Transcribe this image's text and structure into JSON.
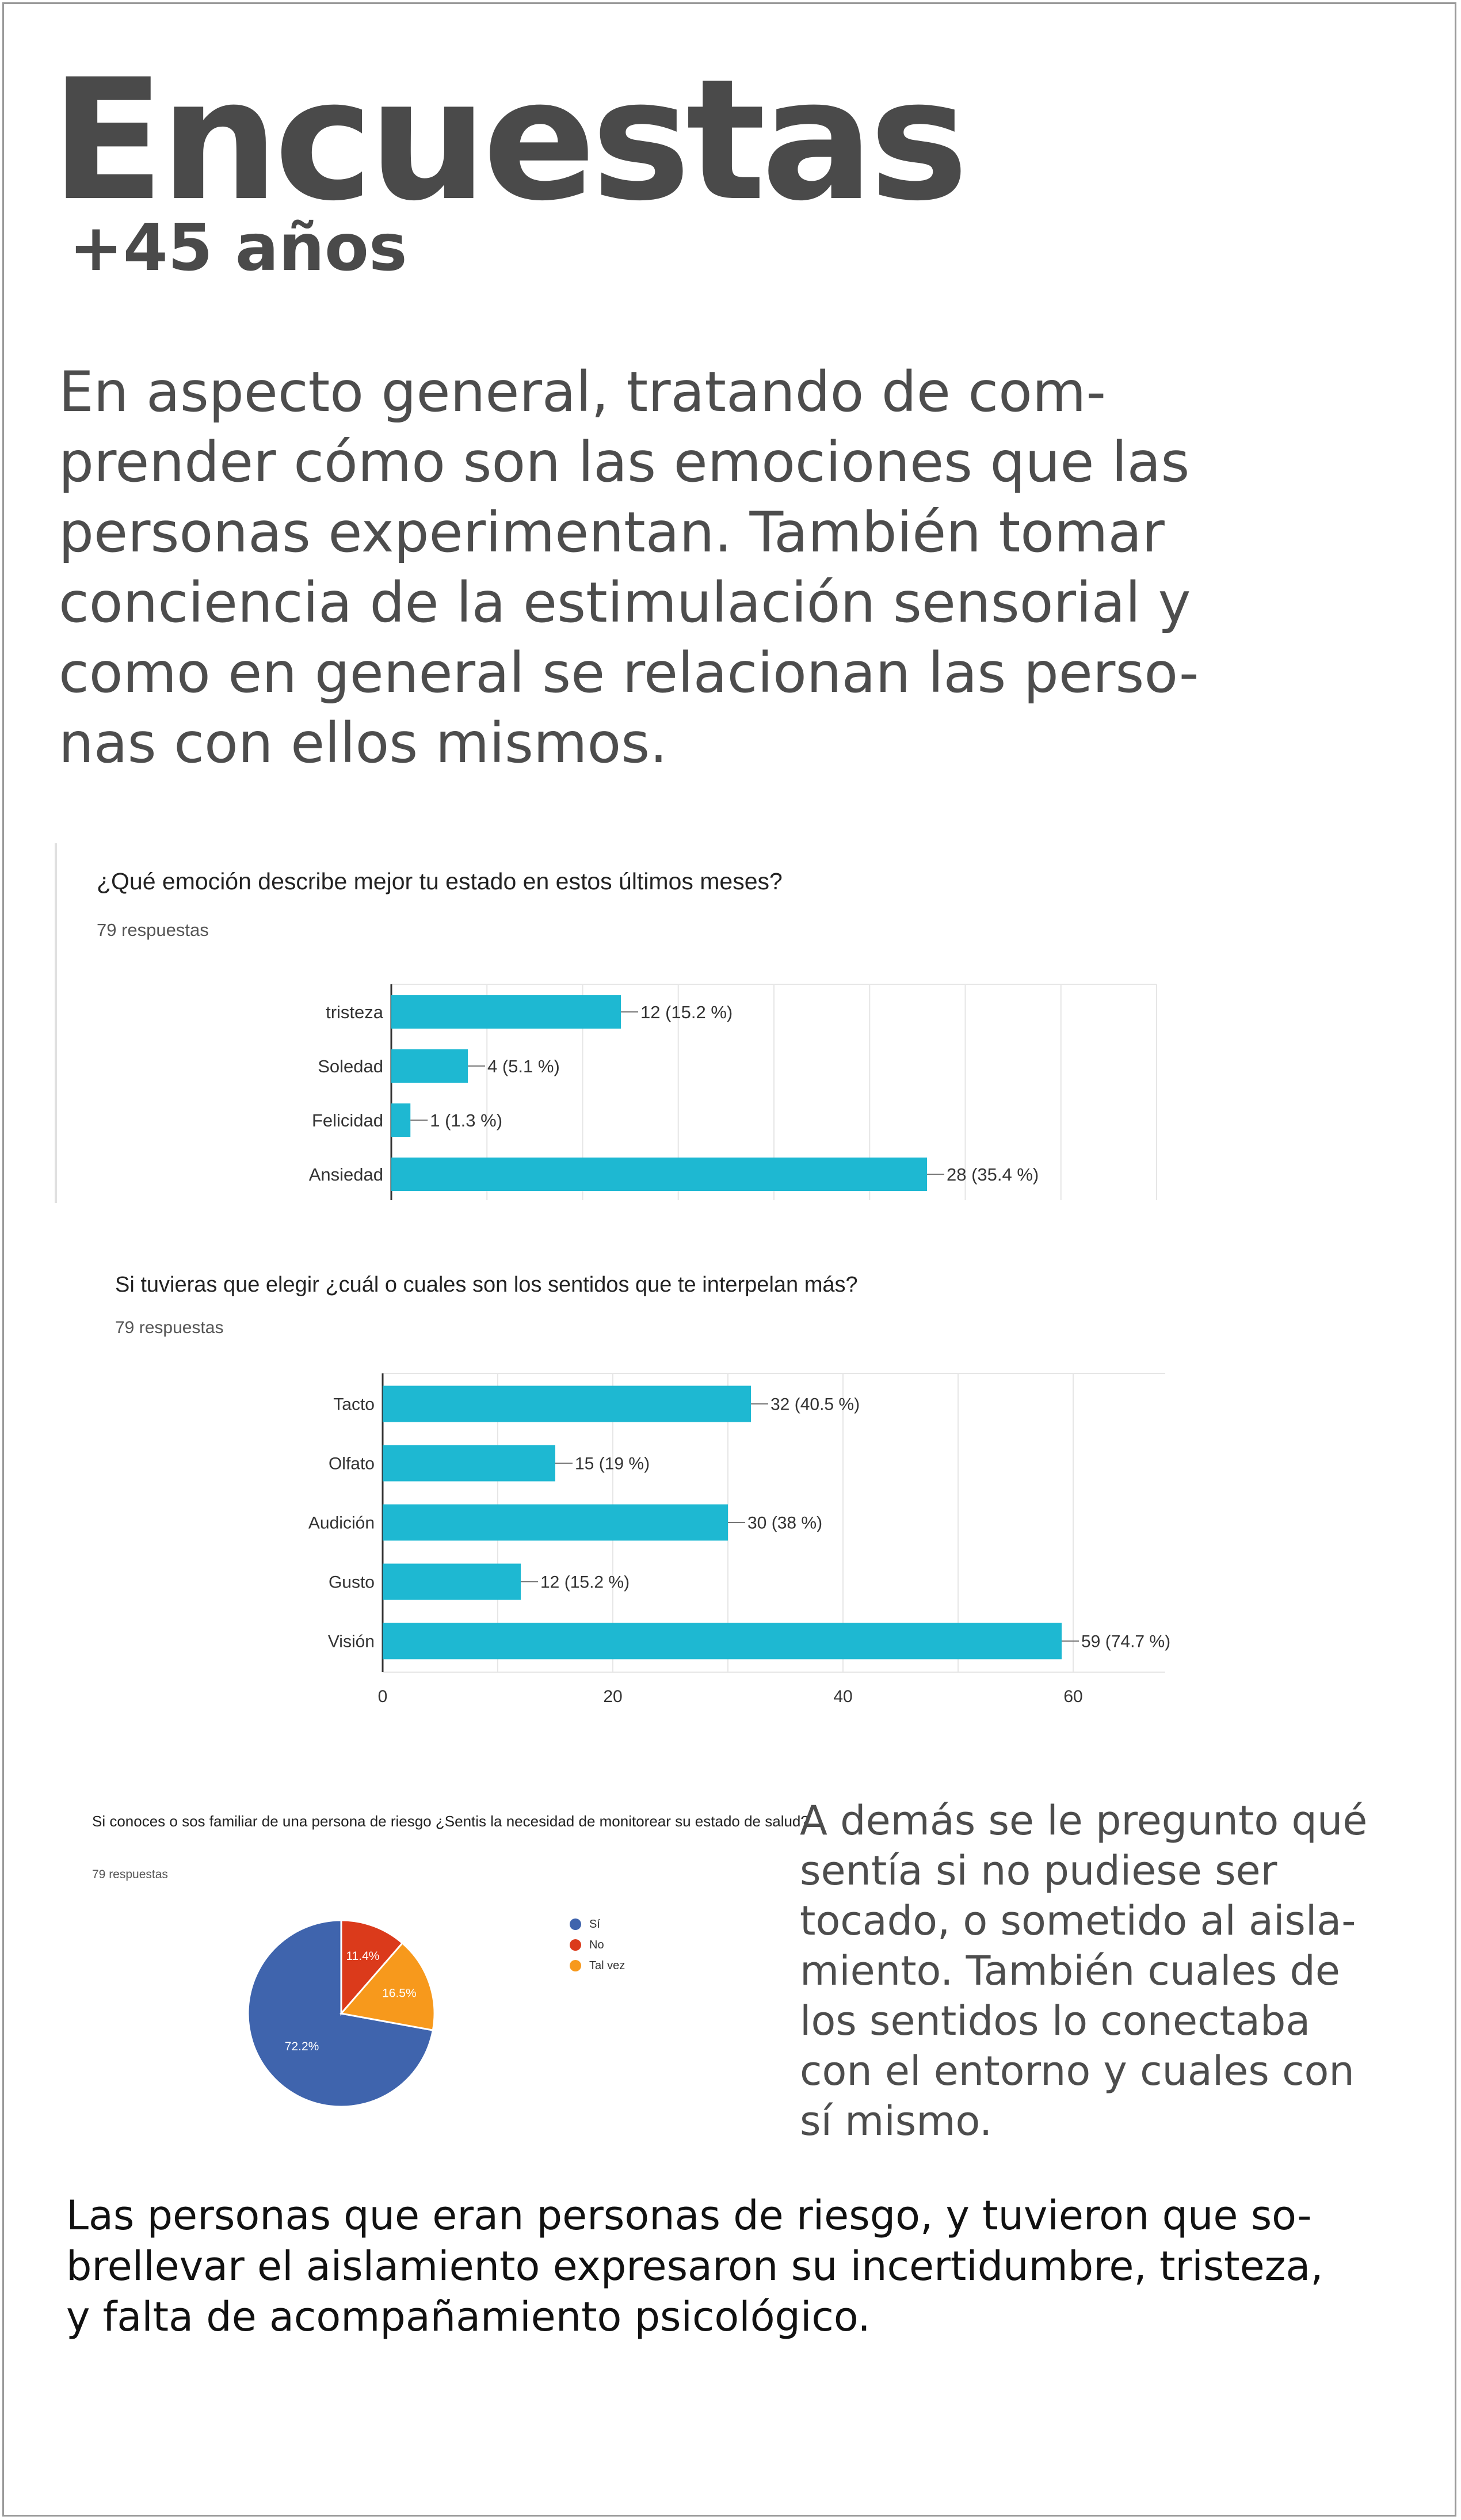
{
  "title": "Encuestas",
  "subtitle": "+45 años",
  "intro": "En aspecto general, tratando de com-\nprender cómo son las emociones que las\npersonas experimentan. También tomar\nconciencia de la estimulación sensorial y\ncomo en general se relacionan las perso-\nnas con ellos mismos.",
  "side_text": "A demás se le pregunto qué\nsentía si no pudiese ser\ntocado, o sometido al aisla-\nmiento. También cuales de\nlos sentidos lo conectaba\ncon el entorno y cuales con\nsí mismo.",
  "bottom_text": "Las personas que eran personas de riesgo, y tuvieron que so-\nbrellevar el aislamiento expresaron su incertidumbre, tristeza,\ny falta de acompañamiento psicológico.",
  "colors": {
    "bar": "#1eb8d2",
    "si": "#3f64ad",
    "no": "#db3a1b",
    "tal_vez": "#f7991c",
    "grid": "#e6e6e6"
  },
  "chart_data": [
    {
      "type": "bar",
      "orientation": "horizontal",
      "title": "¿Qué emoción describe mejor tu estado en estos últimos meses?",
      "responses": "79 respuestas",
      "categories": [
        "tristeza",
        "Soledad",
        "Felicidad",
        "Ansiedad"
      ],
      "values": [
        12,
        4,
        1,
        28
      ],
      "labels": [
        "12 (15.2 %)",
        "4 (5.1 %)",
        "1 (1.3 %)",
        "28 (35.4 %)"
      ],
      "xlim": [
        0,
        40
      ],
      "grid": true
    },
    {
      "type": "bar",
      "orientation": "horizontal",
      "title": "Si tuvieras que elegir ¿cuál o cuales son los sentidos que te interpelan más?",
      "responses": "79 respuestas",
      "categories": [
        "Tacto",
        "Olfato",
        "Audición",
        "Gusto",
        "Visión"
      ],
      "values": [
        32,
        15,
        30,
        12,
        59
      ],
      "labels": [
        "32 (40.5 %)",
        "15 (19 %)",
        "30 (38 %)",
        "12 (15.2 %)",
        "59 (74.7 %)"
      ],
      "xlim": [
        0,
        68
      ],
      "xticks": [
        0,
        20,
        40,
        60
      ],
      "grid": true
    },
    {
      "type": "pie",
      "title": "Si conoces o sos familiar de una persona de riesgo ¿Sentis la necesidad de monitorear su estado de salud?",
      "responses": "79 respuestas",
      "categories": [
        "Sí",
        "No",
        "Tal vez"
      ],
      "values": [
        72.2,
        11.4,
        16.5
      ],
      "labels": [
        "72.2%",
        "11.4%",
        "16.5%"
      ],
      "legend": "right"
    }
  ]
}
